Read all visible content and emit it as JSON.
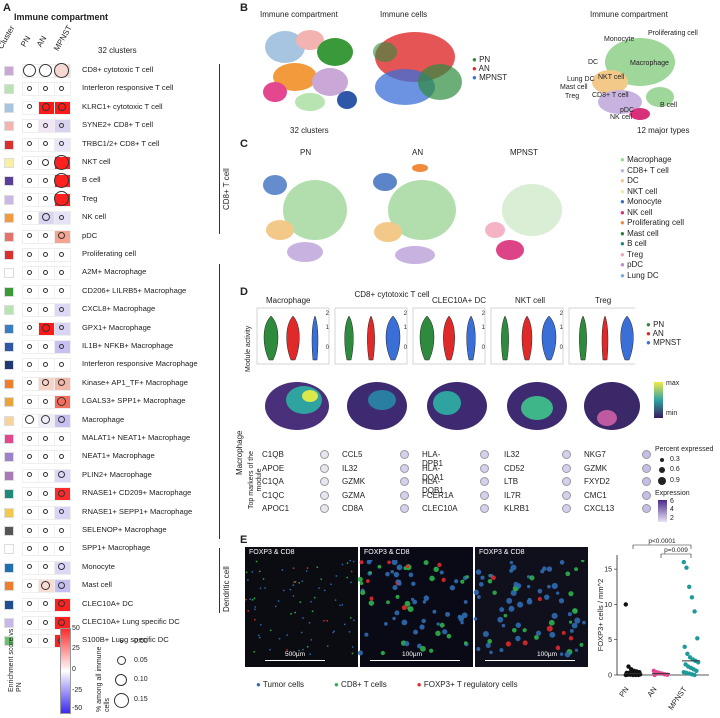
{
  "panel_a": {
    "letter": "A",
    "title": "Immune compartment",
    "col_header_cluster": "Cluster",
    "columns": [
      "PN",
      "AN",
      "MPNST"
    ],
    "cluster_count": "32 clusters",
    "group_labels": [
      "CD8+ T cell",
      "Macrophage",
      "Dendritic cell"
    ],
    "rows": [
      {
        "label": "CD8+ cytotoxic T cell",
        "swatch": "#c9a7d6",
        "pn": "#ffffff",
        "an": "#ffffff",
        "mp": "#f6d9d2",
        "s": [
          0.12,
          0.12,
          0.15
        ]
      },
      {
        "label": "Interferon responsive T cell",
        "swatch": "#b7e4b0",
        "pn": "#ffffff",
        "an": "#ffffff",
        "mp": "#ffffff",
        "s": [
          0.02,
          0.02,
          0.02
        ]
      },
      {
        "label": "KLRC1+ cytotoxic T cell",
        "swatch": "#a7c5e0",
        "pn": "#ffffff",
        "an": "#ff1a1a",
        "mp": "#ff1a1a",
        "s": [
          0.02,
          0.06,
          0.06
        ]
      },
      {
        "label": "SYNE2+ CD8+ T cell",
        "swatch": "#f3b3b0",
        "pn": "#ffffff",
        "an": "#f0e6f6",
        "mp": "#d9d1f0",
        "s": [
          0.02,
          0.02,
          0.02
        ]
      },
      {
        "label": "TRBC1/2+ CD8+ T cell",
        "swatch": "#d9302c",
        "pn": "#ffffff",
        "an": "#ffffff",
        "mp": "#e8e6f8",
        "s": [
          0.02,
          0.02,
          0.02
        ]
      },
      {
        "label": "NKT cell",
        "swatch": "#f7f0a0",
        "pn": "#ffffff",
        "an": "#ffffff",
        "mp": "#ff2020",
        "s": [
          0.02,
          0.05,
          0.15
        ]
      },
      {
        "label": "B cell",
        "swatch": "#5b3e99",
        "pn": "#ffffff",
        "an": "#ffffff",
        "mp": "#ff2020",
        "s": [
          0.02,
          0.02,
          0.15
        ]
      },
      {
        "label": "Treg",
        "swatch": "#c9b8e6",
        "pn": "#ffffff",
        "an": "#ffffff",
        "mp": "#ff2020",
        "s": [
          0.02,
          0.02,
          0.15
        ]
      },
      {
        "label": "NK cell",
        "swatch": "#f39a3c",
        "pn": "#ffffff",
        "an": "#d9d6f4",
        "mp": "#e6e2f8",
        "s": [
          0.02,
          0.06,
          0.02
        ]
      },
      {
        "label": "pDC",
        "swatch": "#e8706a",
        "pn": "#ffffff",
        "an": "#ffffff",
        "mp": "#f5a58f",
        "s": [
          0.02,
          0.02,
          0.05
        ]
      },
      {
        "label": "Proliferating cell",
        "swatch": "#d9302c",
        "pn": "#ffffff",
        "an": "#ffffff",
        "mp": "#ffffff",
        "s": [
          0.02,
          0.02,
          0.02
        ]
      },
      {
        "label": "A2M+ Macrophage",
        "swatch": "#ffffff",
        "pn": "#ffffff",
        "an": "#ffffff",
        "mp": "#ffffff",
        "s": [
          0.02,
          0.02,
          0.02
        ]
      },
      {
        "label": "CD206+ LILRB5+ Macrophage",
        "swatch": "#3a9a3a",
        "pn": "#ffffff",
        "an": "#ffffff",
        "mp": "#ffffff",
        "s": [
          0.02,
          0.02,
          0.02
        ]
      },
      {
        "label": "CXCL8+ Macrophage",
        "swatch": "#b7e4b0",
        "pn": "#ffffff",
        "an": "#ffffff",
        "mp": "#ddd8f6",
        "s": [
          0.02,
          0.02,
          0.02
        ]
      },
      {
        "label": "GPX1+ Macrophage",
        "swatch": "#3a7ec1",
        "pn": "#ffffff",
        "an": "#ff1a1a",
        "mp": "#d9d3f4",
        "s": [
          0.02,
          0.06,
          0.02
        ]
      },
      {
        "label": "IL1B+ NFKB+ Macrophage",
        "swatch": "#2f57a8",
        "pn": "#ffffff",
        "an": "#ffffff",
        "mp": "#c8c0f0",
        "s": [
          0.02,
          0.02,
          0.02
        ]
      },
      {
        "label": "Interferon responsive Macrophage",
        "swatch": "#1f3a73",
        "pn": "#ffffff",
        "an": "#ffffff",
        "mp": "#ffffff",
        "s": [
          0.02,
          0.02,
          0.02
        ]
      },
      {
        "label": "Kinase+ AP1_TF+ Macrophage",
        "swatch": "#f07c2e",
        "pn": "#ffffff",
        "an": "#f7d3c8",
        "mp": "#f4b8a8",
        "s": [
          0.02,
          0.05,
          0.05
        ]
      },
      {
        "label": "LGALS3+ SPP1+ Macrophage",
        "swatch": "#e8a43a",
        "pn": "#ffffff",
        "an": "#ffffff",
        "mp": "#f26f5e",
        "s": [
          0.02,
          0.02,
          0.07
        ]
      },
      {
        "label": "Macrophage",
        "swatch": "#f7d29a",
        "pn": "#ffffff",
        "an": "#f0ecf8",
        "mp": "#c9c0f2",
        "s": [
          0.07,
          0.08,
          0.05
        ]
      },
      {
        "label": "MALAT1+ NEAT1+ Macrophage",
        "swatch": "#e5478f",
        "pn": "#ffffff",
        "an": "#ffffff",
        "mp": "#ffffff",
        "s": [
          0.02,
          0.02,
          0.02
        ]
      },
      {
        "label": "NEAT1+ Macrophage",
        "swatch": "#9c82c8",
        "pn": "#ffffff",
        "an": "#ffffff",
        "mp": "#ffffff",
        "s": [
          0.02,
          0.02,
          0.02
        ]
      },
      {
        "label": "PLIN2+ Macrophage",
        "swatch": "#a77bb5",
        "pn": "#ffffff",
        "an": "#ffffff",
        "mp": "#ddd6f5",
        "s": [
          0.02,
          0.02,
          0.05
        ]
      },
      {
        "label": "RNASE1+ CD209+ Macrophage",
        "swatch": "#1f8a7a",
        "pn": "#ffffff",
        "an": "#ffffff",
        "mp": "#ff2a2a",
        "s": [
          0.02,
          0.02,
          0.05
        ]
      },
      {
        "label": "RNASE1+ SEPP1+ Macrophage",
        "swatch": "#f2c94c",
        "pn": "#ffffff",
        "an": "#ffffff",
        "mp": "#d9d4f6",
        "s": [
          0.02,
          0.02,
          0.02
        ]
      },
      {
        "label": "SELENOP+ Macrophage",
        "swatch": "#555555",
        "pn": "#ffffff",
        "an": "#ffffff",
        "mp": "#ffffff",
        "s": [
          0.02,
          0.02,
          0.02
        ]
      },
      {
        "label": "SPP1+ Macrophage",
        "swatch": "#ffffff",
        "pn": "#ffffff",
        "an": "#ffffff",
        "mp": "#ffffff",
        "s": [
          0.02,
          0.02,
          0.02
        ]
      },
      {
        "label": "Monocyte",
        "swatch": "#1f6fb5",
        "pn": "#ffffff",
        "an": "#ffffff",
        "mp": "#dcd7f6",
        "s": [
          0.02,
          0.02,
          0.05
        ]
      },
      {
        "label": "Mast cell",
        "swatch": "#f07c2e",
        "pn": "#ffffff",
        "an": "#f9dcd4",
        "mp": "#c6bff2",
        "s": [
          0.02,
          0.07,
          0.05
        ]
      },
      {
        "label": "CLEC10A+ DC",
        "swatch": "#1f4f8f",
        "pn": "#ffffff",
        "an": "#ffffff",
        "mp": "#ff2020",
        "s": [
          0.02,
          0.02,
          0.05
        ]
      },
      {
        "label": "CLEC10A+ Lung specific DC",
        "swatch": "#c7b8e8",
        "pn": "#ffffff",
        "an": "#ffffff",
        "mp": "#ff2020",
        "s": [
          0.02,
          0.02,
          0.05
        ]
      },
      {
        "label": "S100B+ Lung specific DC",
        "swatch": "#6dbf6b",
        "pn": "#ffffff",
        "an": "#ffffff",
        "mp": "#ff2020",
        "s": [
          0.02,
          0.02,
          0.05
        ]
      }
    ],
    "colorbar_title": "Enrichment score vs PN",
    "colorbar_ticks": [
      "50",
      "25",
      "0",
      "-25",
      "-50"
    ],
    "size_title": "% among all immune cells",
    "size_ticks": [
      "0.00",
      "0.05",
      "0.10",
      "0.15"
    ]
  },
  "panel_b": {
    "letter": "B",
    "titles": [
      "Immune compartment",
      "Immune cells",
      "Immune compartment"
    ],
    "captions": [
      "32 clusters",
      "12 major types"
    ],
    "legend": [
      {
        "name": "PN",
        "color": "#2e8b3e"
      },
      {
        "name": "AN",
        "color": "#e02a2a"
      },
      {
        "name": "MPNST",
        "color": "#3a6fd8"
      }
    ],
    "type_labels": [
      "Monocyte",
      "Proliferating cell",
      "DC",
      "Macrophage",
      "Lung DC",
      "NKT cell",
      "Mast cell",
      "Treg",
      "CD8+ T cell",
      "pDC",
      "B cell",
      "NK cell"
    ]
  },
  "panel_c": {
    "letter": "C",
    "titles": [
      "PN",
      "AN",
      "MPNST"
    ],
    "legend": [
      {
        "name": "Macrophage",
        "color": "#9fd69a"
      },
      {
        "name": "CD8+ T cell",
        "color": "#c8b3e0"
      },
      {
        "name": "DC",
        "color": "#f3c98a"
      },
      {
        "name": "NKT cell",
        "color": "#f5e9a0"
      },
      {
        "name": "Monocyte",
        "color": "#3f6fbf"
      },
      {
        "name": "NK cell",
        "color": "#d9307a"
      },
      {
        "name": "Proliferating cell",
        "color": "#f08a3c"
      },
      {
        "name": "Mast cell",
        "color": "#2a7f3a"
      },
      {
        "name": "B cell",
        "color": "#1f8a7a"
      },
      {
        "name": "Treg",
        "color": "#f2a0b8"
      },
      {
        "name": "pDC",
        "color": "#b68fd0"
      },
      {
        "name": "Lung DC",
        "color": "#6fb0e0"
      }
    ]
  },
  "panel_d": {
    "letter": "D",
    "titles": [
      "Macrophage",
      "CD8+ cytotoxic T cell",
      "CLEC10A+ DC",
      "NKT cell",
      "Treg"
    ],
    "ylabel": "Module activity",
    "row_label": "Macrophage",
    "yticks": [
      "2",
      "1",
      "0"
    ],
    "legend": [
      {
        "name": "PN",
        "color": "#2e8b3e"
      },
      {
        "name": "AN",
        "color": "#e02a2a"
      },
      {
        "name": "MPNST",
        "color": "#3a6fd8"
      }
    ],
    "feature_scale": [
      "max",
      "min"
    ],
    "marker_title": "Top markers of the module",
    "markers": [
      [
        "C1QB",
        "APOE",
        "C1QA",
        "C1QC",
        "APOC1"
      ],
      [
        "CCL5",
        "IL32",
        "GZMK",
        "GZMA",
        "CD8A"
      ],
      [
        "HLA-DPB1",
        "HLA-DQA1",
        "HLA-DQB1",
        "FCER1A",
        "CLEC10A"
      ],
      [
        "IL32",
        "CD52",
        "LTB",
        "IL7R",
        "KLRB1"
      ],
      [
        "NKG7",
        "GZMK",
        "FXYD2",
        "CMC1",
        "CXCL13"
      ]
    ],
    "pct_title": "Percent expressed",
    "pct_ticks": [
      "0.3",
      "0.6",
      "0.9"
    ],
    "expr_title": "Expression",
    "expr_ticks": [
      "6",
      "4",
      "2"
    ]
  },
  "panel_e": {
    "letter": "E",
    "image_titles": [
      "FOXP3 & CD8",
      "FOXP3 & CD8",
      "FOXP3 & CD8"
    ],
    "scale_bars": [
      "500µm",
      "100µm",
      "100µm"
    ],
    "legend": [
      {
        "name": "Tumor cells",
        "color": "#2f6bb0"
      },
      {
        "name": "CD8+ T cells",
        "color": "#2bb34a"
      },
      {
        "name": "FOXP3+ T regulatory cells",
        "color": "#e02a2a"
      }
    ],
    "ylabel": "FOXP3+ cells / mm^2",
    "pvalues": [
      "p<0.0001",
      "p=0.009"
    ]
  },
  "chart_data": {
    "type": "scatter",
    "categories": [
      "PN",
      "AN",
      "MPNST"
    ],
    "ylabel": "FOXP3+ cells / mm^2",
    "ylim": [
      0,
      17
    ],
    "yticks": [
      0,
      5,
      10,
      15
    ],
    "series": [
      {
        "name": "PN",
        "color": "#111111",
        "values": [
          10,
          1.2,
          0.8,
          0.6,
          0.5,
          0.4,
          0.3,
          0.3,
          0.2,
          0.2,
          0.1,
          0.1,
          0.05,
          0.05,
          0,
          0,
          0,
          0
        ]
      },
      {
        "name": "AN",
        "color": "#e0478f",
        "values": [
          0.6,
          0.4,
          0.3,
          0.2,
          0.1,
          0.05,
          0
        ]
      },
      {
        "name": "MPNST",
        "color": "#1f9a9a",
        "values": [
          16,
          15.2,
          12.5,
          11,
          9,
          5.2,
          4,
          3,
          2.5,
          2.2,
          2,
          1.8,
          1.5,
          1.2,
          1,
          0.8,
          0.6,
          0.4,
          0.3,
          0.2,
          0.1,
          0
        ]
      }
    ]
  }
}
